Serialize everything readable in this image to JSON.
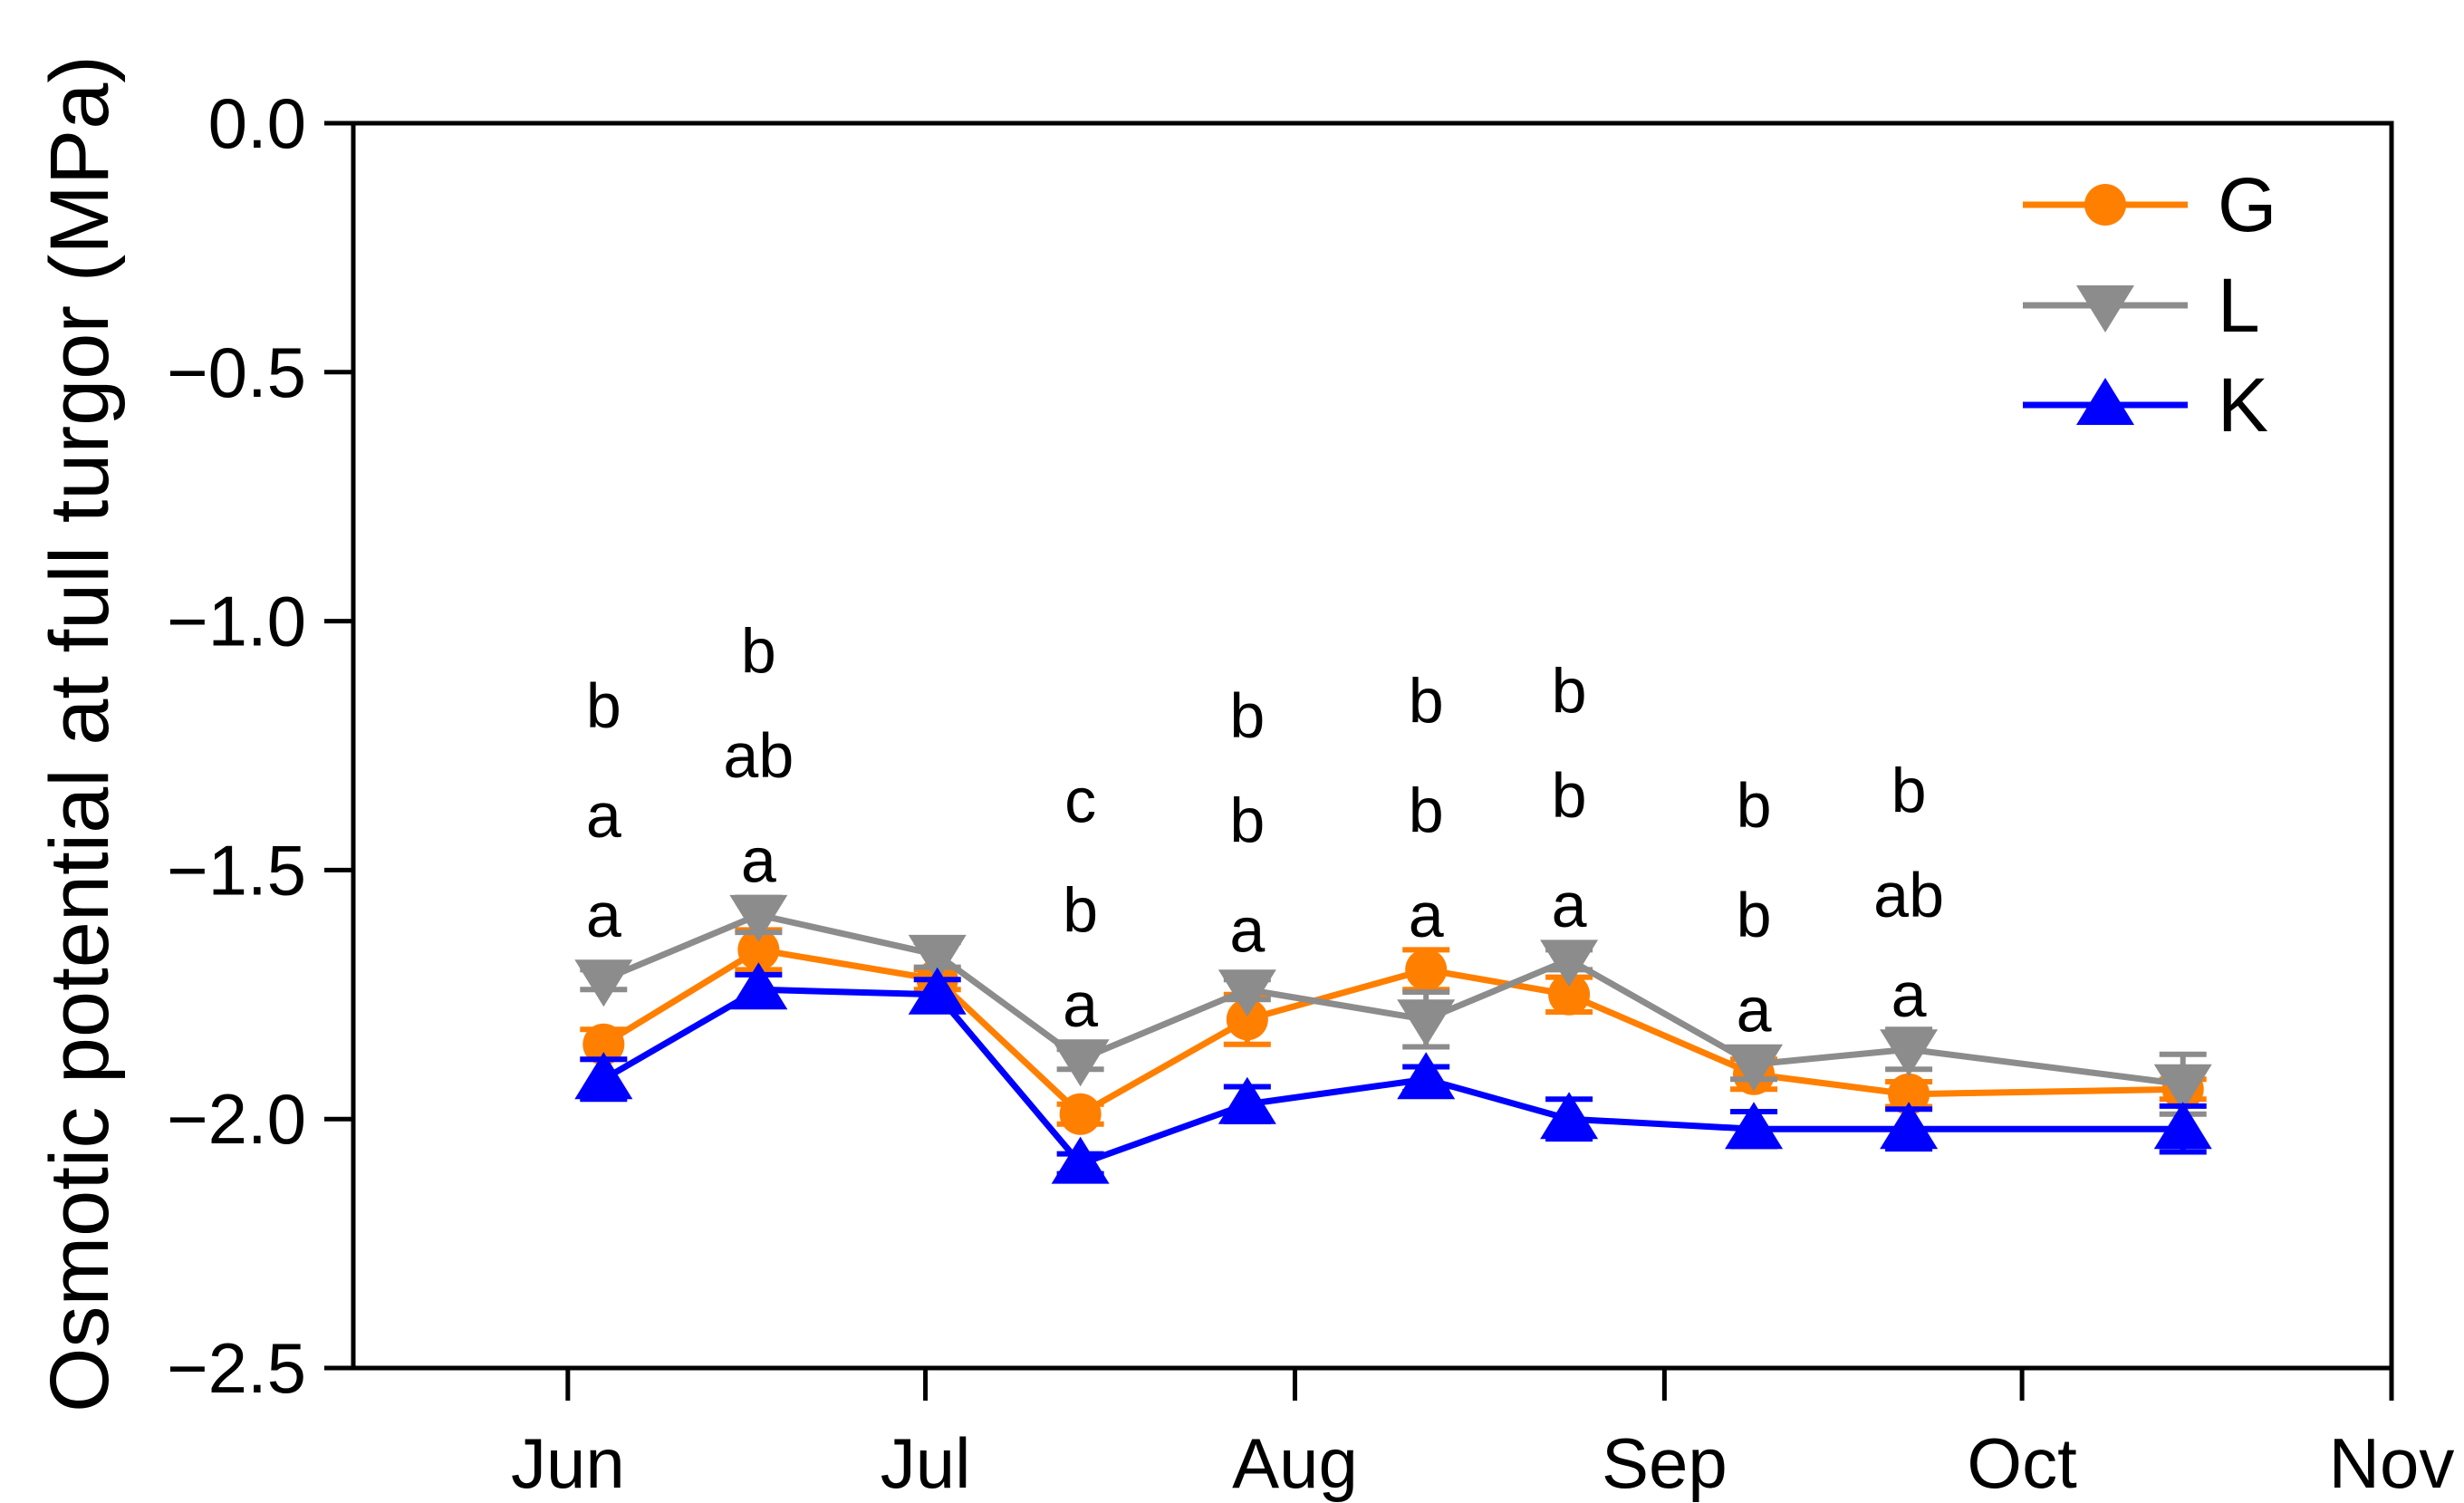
{
  "chart_data": {
    "type": "line",
    "title": "",
    "xlabel": "",
    "ylabel": "Osmotic potential at full turgor (MPa)",
    "ylim": [
      -2.5,
      0.0
    ],
    "x_axis_span_days": [
      -18,
      153
    ],
    "grid": false,
    "legend_position": "top-right",
    "y_ticks": [
      {
        "label": "0.0",
        "value": 0.0
      },
      {
        "label": "−0.5",
        "value": -0.5
      },
      {
        "label": "−1.0",
        "value": -1.0
      },
      {
        "label": "−1.5",
        "value": -1.5
      },
      {
        "label": "−2.0",
        "value": -2.0
      },
      {
        "label": "−2.5",
        "value": -2.5
      }
    ],
    "x_ticks": [
      {
        "label": "Jun",
        "t": 0
      },
      {
        "label": "Jul",
        "t": 30
      },
      {
        "label": "Aug",
        "t": 61
      },
      {
        "label": "Sep",
        "t": 92
      },
      {
        "label": "Oct",
        "t": 122
      },
      {
        "label": "Nov",
        "t": 153
      }
    ],
    "series": [
      {
        "name": "G",
        "color": "#FF7F00",
        "marker": "circle",
        "points": [
          {
            "t": 3,
            "v": -1.85,
            "e": 0.03
          },
          {
            "t": 16,
            "v": -1.66,
            "e": 0.04
          },
          {
            "t": 31,
            "v": -1.72,
            "e": 0.02
          },
          {
            "t": 43,
            "v": -1.99,
            "e": 0.02
          },
          {
            "t": 57,
            "v": -1.8,
            "e": 0.05
          },
          {
            "t": 72,
            "v": -1.7,
            "e": 0.04
          },
          {
            "t": 84,
            "v": -1.75,
            "e": 0.035
          },
          {
            "t": 99.5,
            "v": -1.91,
            "e": 0.03
          },
          {
            "t": 112.5,
            "v": -1.95,
            "e": 0.025
          },
          {
            "t": 135.5,
            "v": -1.94,
            "e": 0.02
          }
        ]
      },
      {
        "name": "L",
        "color": "#8C8C8C",
        "marker": "triangle-down",
        "points": [
          {
            "t": 3,
            "v": -1.72,
            "e": 0.02
          },
          {
            "t": 16,
            "v": -1.59,
            "e": 0.035
          },
          {
            "t": 31,
            "v": -1.67,
            "e": 0.025
          },
          {
            "t": 43,
            "v": -1.88,
            "e": 0.02
          },
          {
            "t": 57,
            "v": -1.74,
            "e": 0.02
          },
          {
            "t": 72,
            "v": -1.8,
            "e": 0.055
          },
          {
            "t": 84,
            "v": -1.68,
            "e": 0.02
          },
          {
            "t": 99.5,
            "v": -1.89,
            "e": 0.03
          },
          {
            "t": 112.5,
            "v": -1.86,
            "e": 0.04
          },
          {
            "t": 135.5,
            "v": -1.93,
            "e": 0.06
          }
        ]
      },
      {
        "name": "K",
        "color": "#0000FF",
        "marker": "triangle-up",
        "points": [
          {
            "t": 3,
            "v": -1.92,
            "e": 0.04
          },
          {
            "t": 16,
            "v": -1.74,
            "e": 0.03
          },
          {
            "t": 31,
            "v": -1.75,
            "e": 0.03
          },
          {
            "t": 43,
            "v": -2.09,
            "e": 0.02
          },
          {
            "t": 57,
            "v": -1.97,
            "e": 0.035
          },
          {
            "t": 72,
            "v": -1.92,
            "e": 0.025
          },
          {
            "t": 84,
            "v": -2.0,
            "e": 0.04
          },
          {
            "t": 99.5,
            "v": -2.02,
            "e": 0.035
          },
          {
            "t": 112.5,
            "v": -2.02,
            "e": 0.04
          },
          {
            "t": 135.5,
            "v": -2.02,
            "e": 0.046
          }
        ]
      }
    ],
    "annotations": [
      {
        "t": 3,
        "letters": [
          {
            "text": "b",
            "v": -1.17
          },
          {
            "text": "a",
            "v": -1.39
          },
          {
            "text": "a",
            "v": -1.59
          }
        ]
      },
      {
        "t": 16,
        "letters": [
          {
            "text": "b",
            "v": -1.06
          },
          {
            "text": "ab",
            "v": -1.27
          },
          {
            "text": "a",
            "v": -1.48
          }
        ]
      },
      {
        "t": 43,
        "letters": [
          {
            "text": "c",
            "v": -1.36
          },
          {
            "text": "b",
            "v": -1.58
          },
          {
            "text": "a",
            "v": -1.77
          }
        ]
      },
      {
        "t": 57,
        "letters": [
          {
            "text": "b",
            "v": -1.19
          },
          {
            "text": "b",
            "v": -1.4
          },
          {
            "text": "a",
            "v": -1.62
          }
        ]
      },
      {
        "t": 72,
        "letters": [
          {
            "text": "b",
            "v": -1.16
          },
          {
            "text": "b",
            "v": -1.38
          },
          {
            "text": "a",
            "v": -1.59
          }
        ]
      },
      {
        "t": 84,
        "letters": [
          {
            "text": "b",
            "v": -1.14
          },
          {
            "text": "b",
            "v": -1.35
          },
          {
            "text": "a",
            "v": -1.57
          }
        ]
      },
      {
        "t": 99.5,
        "letters": [
          {
            "text": "b",
            "v": -1.37
          },
          {
            "text": "b",
            "v": -1.59
          },
          {
            "text": "a",
            "v": -1.78
          }
        ]
      },
      {
        "t": 112.5,
        "letters": [
          {
            "text": "b",
            "v": -1.34
          },
          {
            "text": "ab",
            "v": -1.55
          },
          {
            "text": "a",
            "v": -1.75
          }
        ]
      }
    ],
    "legend": {
      "entries": [
        "G",
        "L",
        "K"
      ]
    }
  }
}
